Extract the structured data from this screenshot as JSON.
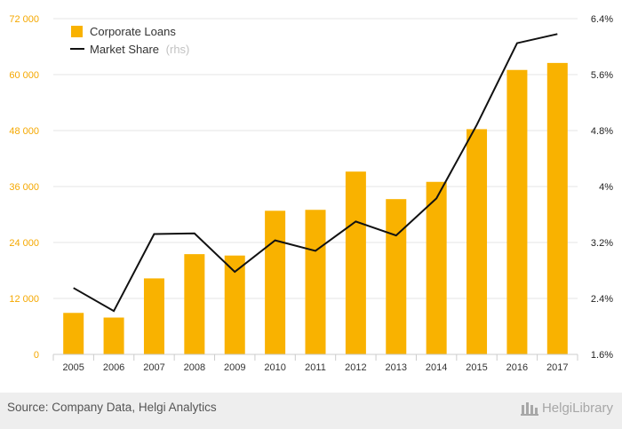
{
  "chart_data": {
    "type": "bar+line",
    "categories": [
      "2005",
      "2006",
      "2007",
      "2008",
      "2009",
      "2010",
      "2011",
      "2012",
      "2013",
      "2014",
      "2015",
      "2016",
      "2017"
    ],
    "series": [
      {
        "name": "Corporate Loans",
        "kind": "bar",
        "axis": "left",
        "values": [
          8900,
          7900,
          16300,
          21500,
          21200,
          30800,
          31000,
          39200,
          33300,
          37000,
          48300,
          61000,
          62500
        ]
      },
      {
        "name": "Market Share",
        "legend_suffix": "(rhs)",
        "kind": "line",
        "axis": "right",
        "values": [
          2.55,
          2.22,
          3.32,
          3.33,
          2.78,
          3.23,
          3.08,
          3.5,
          3.3,
          3.83,
          4.88,
          6.05,
          6.18
        ]
      }
    ],
    "left_axis": {
      "ylim": [
        0,
        72000
      ],
      "ticks": [
        0,
        12000,
        24000,
        36000,
        48000,
        60000,
        72000
      ],
      "tick_labels": [
        "0",
        "12 000",
        "24 000",
        "36 000",
        "48 000",
        "60 000",
        "72 000"
      ]
    },
    "right_axis": {
      "ylim": [
        1.6,
        6.4
      ],
      "ticks": [
        1.6,
        2.4,
        3.2,
        4.0,
        4.8,
        5.6,
        6.4
      ],
      "tick_labels": [
        "1.6%",
        "2.4%",
        "3.2%",
        "4%",
        "4.8%",
        "5.6%",
        "6.4%"
      ]
    },
    "grid": true,
    "legend_position": "top-left",
    "colors": {
      "bar": "#f9b200",
      "line": "#111111",
      "left_tick": "#f5a800",
      "right_tick": "#222222",
      "grid": "#e6e6e6"
    }
  },
  "footer": {
    "source": "Source: Company Data, Helgi Analytics",
    "brand": "HelgiLibrary",
    "brand_icon": "helgi-library-icon"
  }
}
